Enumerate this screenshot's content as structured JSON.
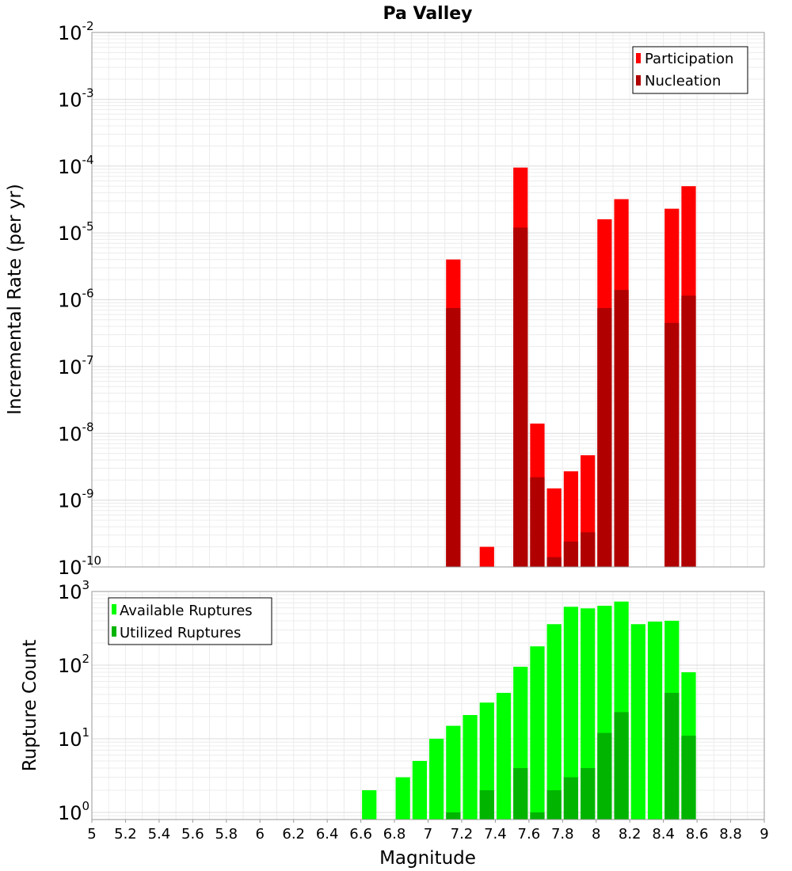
{
  "chart_data": [
    {
      "type": "bar",
      "title": "Pa Valley",
      "ylabel": "Incremental Rate (per yr)",
      "xlabel": "",
      "yscale": "log",
      "ylim": [
        1e-10,
        0.01
      ],
      "xlim": [
        5,
        9
      ],
      "bin_width": 0.1,
      "y_ticks": [
        {
          "base": "10",
          "exp": "-10",
          "value": 1e-10
        },
        {
          "base": "10",
          "exp": "-9",
          "value": 1e-09
        },
        {
          "base": "10",
          "exp": "-8",
          "value": 1e-08
        },
        {
          "base": "10",
          "exp": "-7",
          "value": 1e-07
        },
        {
          "base": "10",
          "exp": "-6",
          "value": 1e-06
        },
        {
          "base": "10",
          "exp": "-5",
          "value": 1e-05
        },
        {
          "base": "10",
          "exp": "-4",
          "value": 0.0001
        },
        {
          "base": "10",
          "exp": "-3",
          "value": 0.001
        },
        {
          "base": "10",
          "exp": "-2",
          "value": 0.01
        }
      ],
      "legend_position": "top-right",
      "series": [
        {
          "name": "Participation",
          "color": "#ff0000",
          "x": [
            7.15,
            7.35,
            7.55,
            7.65,
            7.75,
            7.85,
            7.95,
            8.05,
            8.15,
            8.45,
            8.55
          ],
          "values": [
            4e-06,
            2e-10,
            9.5e-05,
            1.4e-08,
            1.5e-09,
            2.7e-09,
            4.7e-09,
            1.6e-05,
            3.2e-05,
            2.3e-05,
            5e-05
          ]
        },
        {
          "name": "Nucleation",
          "color": "#b00000",
          "x": [
            7.15,
            7.55,
            7.65,
            7.75,
            7.85,
            7.95,
            8.05,
            8.15,
            8.45,
            8.55
          ],
          "values": [
            7.5e-07,
            1.2e-05,
            2.2e-09,
            1.4e-10,
            2.4e-10,
            3.3e-10,
            7.5e-07,
            1.4e-06,
            4.5e-07,
            1.15e-06
          ]
        }
      ]
    },
    {
      "type": "bar",
      "title": "",
      "ylabel": "Rupture Count",
      "xlabel": "Magnitude",
      "yscale": "log",
      "ylim": [
        0.8,
        1000
      ],
      "xlim": [
        5,
        9
      ],
      "bin_width": 0.1,
      "y_ticks": [
        {
          "base": "10",
          "exp": "0",
          "value": 1
        },
        {
          "base": "10",
          "exp": "1",
          "value": 10
        },
        {
          "base": "10",
          "exp": "2",
          "value": 100
        },
        {
          "base": "10",
          "exp": "3",
          "value": 1000
        }
      ],
      "x_ticks": [
        "5",
        "5.2",
        "5.4",
        "5.6",
        "5.8",
        "6",
        "6.2",
        "6.4",
        "6.6",
        "6.8",
        "7",
        "7.2",
        "7.4",
        "7.6",
        "7.8",
        "8",
        "8.2",
        "8.4",
        "8.6",
        "8.8",
        "9"
      ],
      "legend_position": "top-left",
      "series": [
        {
          "name": "Available Ruptures",
          "color": "#00ff00",
          "x": [
            6.65,
            6.85,
            6.95,
            7.05,
            7.15,
            7.25,
            7.35,
            7.45,
            7.55,
            7.65,
            7.75,
            7.85,
            7.95,
            8.05,
            8.15,
            8.25,
            8.35,
            8.45,
            8.55
          ],
          "values": [
            2,
            3,
            5,
            10,
            15,
            21,
            31,
            42,
            95,
            180,
            360,
            620,
            590,
            640,
            730,
            360,
            390,
            400,
            80
          ]
        },
        {
          "name": "Utilized Ruptures",
          "color": "#00b400",
          "x": [
            7.15,
            7.35,
            7.55,
            7.65,
            7.75,
            7.85,
            7.95,
            8.05,
            8.15,
            8.45,
            8.55
          ],
          "values": [
            1,
            2,
            4,
            1,
            2,
            3,
            4,
            12,
            23,
            42,
            11
          ]
        }
      ]
    }
  ]
}
